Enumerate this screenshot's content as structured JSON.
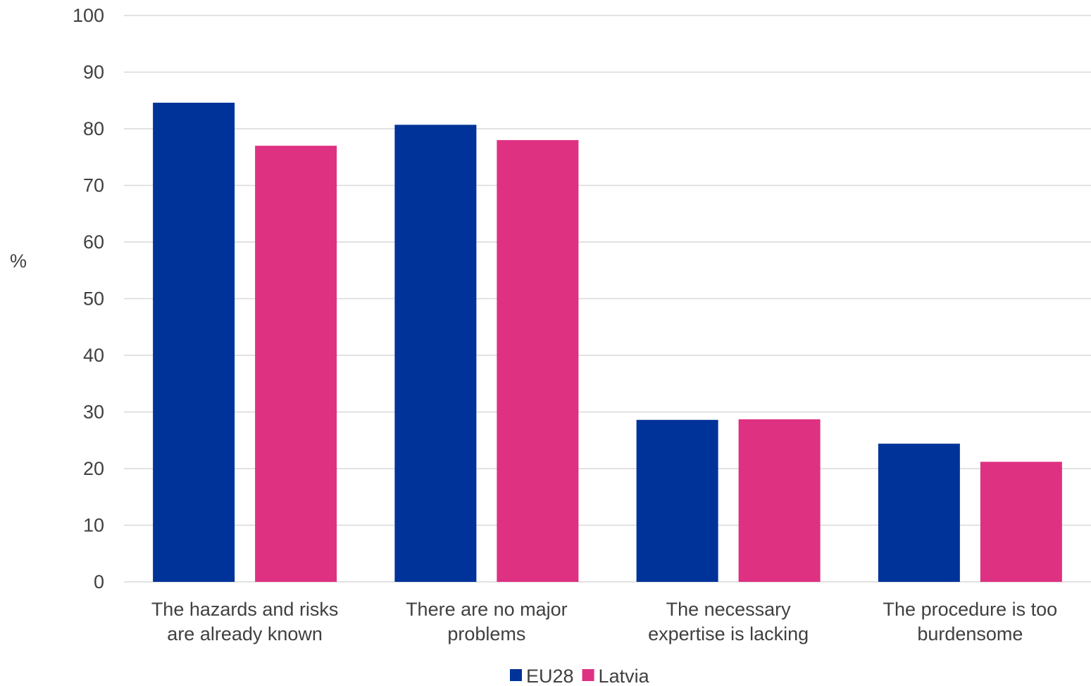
{
  "chart_data": {
    "type": "bar",
    "categories": [
      [
        "The hazards and risks",
        "are already known"
      ],
      [
        "There are no major",
        "problems"
      ],
      [
        "The necessary",
        "expertise is lacking"
      ],
      [
        "The procedure is too",
        "burdensome"
      ]
    ],
    "series": [
      {
        "name": "EU28",
        "color": "#003399",
        "values": [
          84.6,
          80.7,
          28.6,
          24.4
        ]
      },
      {
        "name": "Latvia",
        "color": "#DE3182",
        "values": [
          77.0,
          78.0,
          28.7,
          21.2
        ]
      }
    ],
    "ylabel": "%",
    "ylim": [
      0,
      100
    ],
    "yticks": [
      0,
      10,
      20,
      30,
      40,
      50,
      60,
      70,
      80,
      90,
      100
    ],
    "grid": true,
    "legend_position": "bottom-center"
  }
}
